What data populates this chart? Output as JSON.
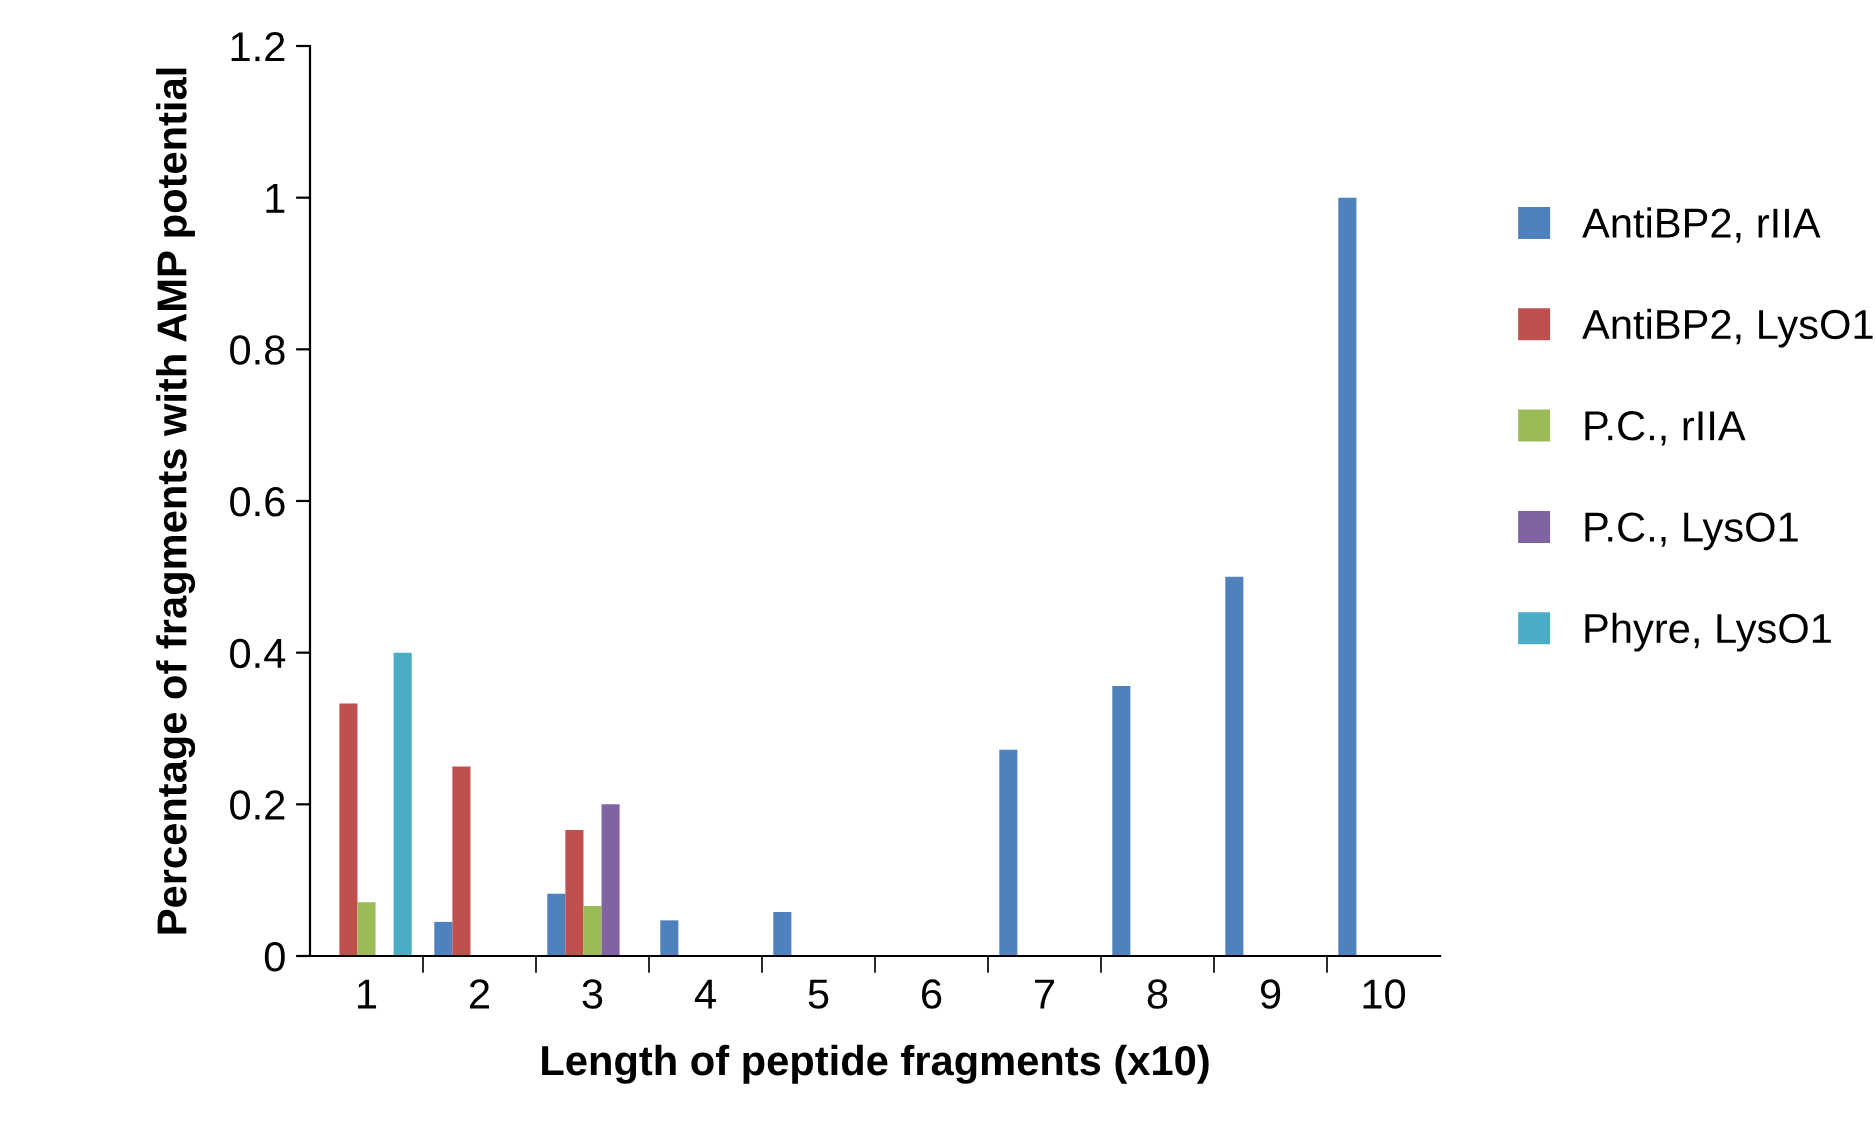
{
  "chart_data": {
    "type": "bar",
    "xlabel": "Length of peptide fragments (x10)",
    "ylabel": "Percentage of fragments with AMP potential",
    "categories": [
      "1",
      "2",
      "3",
      "4",
      "5",
      "6",
      "7",
      "8",
      "9",
      "10"
    ],
    "series": [
      {
        "name": "AntiBP2, rIIA",
        "color": "#4f81bd",
        "values": [
          0,
          0.045,
          0.082,
          0.047,
          0.058,
          0,
          0.272,
          0.356,
          0.5,
          1.0
        ]
      },
      {
        "name": "AntiBP2, LysO1",
        "color": "#c0504d",
        "values": [
          0.333,
          0.25,
          0.166,
          0,
          0,
          0,
          0,
          0,
          0,
          0
        ]
      },
      {
        "name": "P.C., rIIA",
        "color": "#9bbb59",
        "values": [
          0.071,
          0,
          0.066,
          0,
          0,
          0,
          0,
          0,
          0,
          0
        ]
      },
      {
        "name": "P.C., LysO1",
        "color": "#8064a2",
        "values": [
          0,
          0,
          0.2,
          0,
          0,
          0,
          0,
          0,
          0,
          0
        ]
      },
      {
        "name": "Phyre, LysO1",
        "color": "#4bacc6",
        "values": [
          0.4,
          0,
          0,
          0,
          0,
          0,
          0,
          0,
          0,
          0
        ]
      }
    ],
    "ylim": [
      0,
      1.2
    ],
    "yticks": [
      0,
      0.2,
      0.4,
      0.6,
      0.8,
      1,
      1.2
    ],
    "grid": false,
    "legend": "right"
  }
}
